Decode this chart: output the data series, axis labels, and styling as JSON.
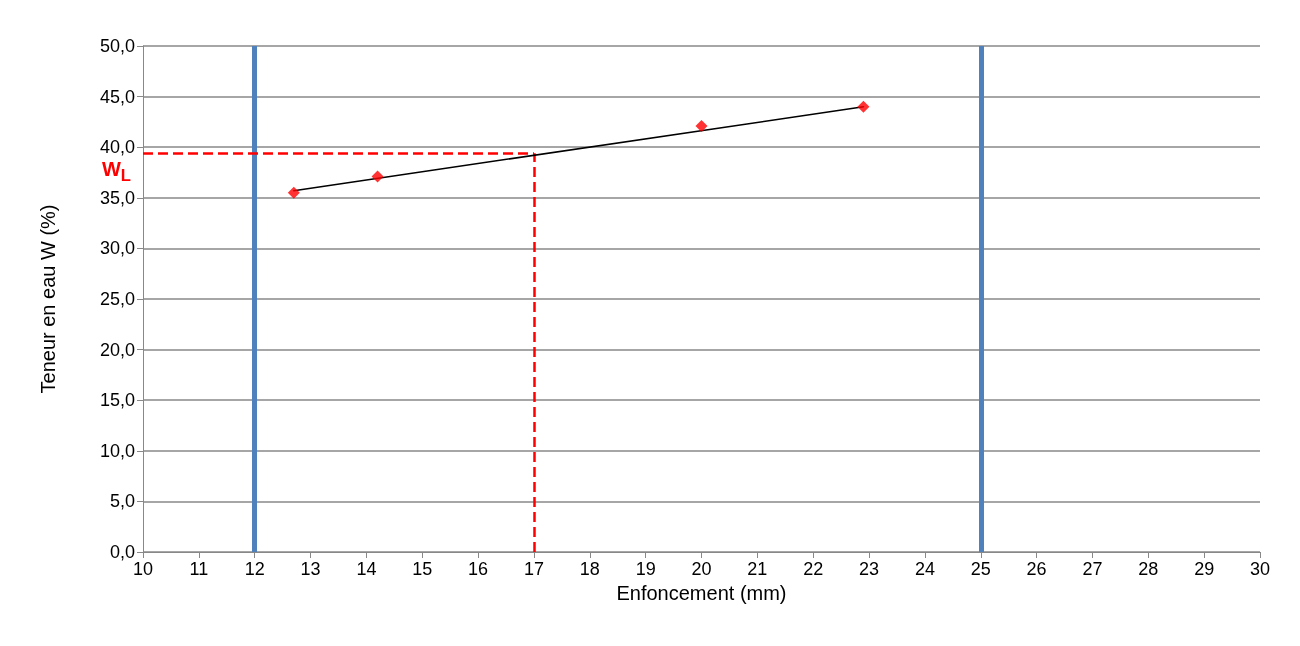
{
  "chart_data": {
    "type": "scatter",
    "xlabel": "Enfoncement (mm)",
    "ylabel": "Teneur en eau W (%)",
    "xlim": [
      10,
      30
    ],
    "xticks": [
      10,
      11,
      12,
      13,
      14,
      15,
      16,
      17,
      18,
      19,
      20,
      21,
      22,
      23,
      24,
      25,
      26,
      27,
      28,
      29,
      30
    ],
    "ylim": [
      0,
      50
    ],
    "yticks": [
      {
        "value": 0,
        "label": "0,0"
      },
      {
        "value": 5,
        "label": "5,0"
      },
      {
        "value": 10,
        "label": "10,0"
      },
      {
        "value": 15,
        "label": "15,0"
      },
      {
        "value": 20,
        "label": "20,0"
      },
      {
        "value": 25,
        "label": "25,0"
      },
      {
        "value": 30,
        "label": "30,0"
      },
      {
        "value": 35,
        "label": "35,0"
      },
      {
        "value": 40,
        "label": "40,0"
      },
      {
        "value": 45,
        "label": "45,0"
      },
      {
        "value": 50,
        "label": "50,0"
      }
    ],
    "grid": "y",
    "series": [
      {
        "color": "#ff0000",
        "marker": "diamond",
        "x": [
          12.7,
          14.2,
          20,
          22.9
        ],
        "values": [
          35.5,
          37.1,
          42.1,
          44.0
        ]
      },
      {
        "type": "line",
        "color": "#000000",
        "marker": "none",
        "line_style": "solid",
        "x": [
          12.7,
          22.9
        ],
        "values": [
          35.7,
          44.0
        ]
      }
    ],
    "ref_lines": [
      {
        "axis": "x",
        "value": 12,
        "color": "#4f81bd",
        "line_style": "solid"
      },
      {
        "axis": "x",
        "value": 25,
        "color": "#4f81bd",
        "line_style": "solid"
      },
      {
        "axis": "x",
        "value": 17,
        "color": "#ff0000",
        "line_style": "dashed"
      },
      {
        "axis": "y",
        "value": 39.4,
        "label": "W$_{L}$",
        "color": "#ff0000",
        "line_style": "dashed"
      }
    ]
  }
}
